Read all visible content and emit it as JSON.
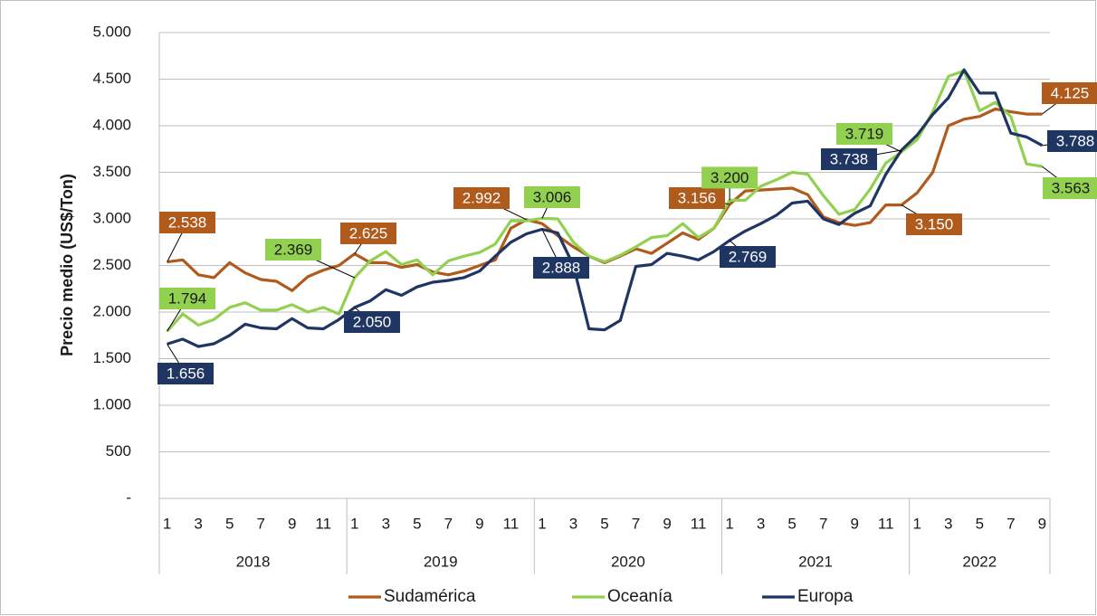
{
  "chart_data": {
    "type": "line",
    "y_label": "Precio medio (US$/Ton)",
    "categories": [
      "1",
      null,
      "3",
      null,
      "5",
      null,
      "7",
      null,
      "9",
      null,
      "11",
      null,
      "1",
      null,
      "3",
      null,
      "5",
      null,
      "7",
      null,
      "9",
      null,
      "11",
      null,
      "1",
      null,
      "3",
      null,
      "5",
      null,
      "7",
      null,
      "9",
      null,
      "11",
      null,
      "1",
      null,
      "3",
      null,
      "5",
      null,
      "7",
      null,
      "9",
      null,
      "11",
      null,
      "1",
      null,
      "3",
      null,
      "5",
      null,
      "7",
      null,
      "9"
    ],
    "groups": [
      "2018",
      "2019",
      "2020",
      "2021",
      "2022"
    ],
    "ylim": [
      0,
      5000
    ],
    "yticks": [
      {
        "value": 0,
        "label": "-"
      },
      500,
      {
        "value": 1000,
        "label": "1.000"
      },
      {
        "value": 1500,
        "label": "1.500"
      },
      {
        "value": 2000,
        "label": "2.000"
      },
      {
        "value": 2500,
        "label": "2.500"
      },
      {
        "value": 3000,
        "label": "3.000"
      },
      {
        "value": 3500,
        "label": "3.500"
      },
      {
        "value": 4000,
        "label": "4.000"
      },
      {
        "value": 4500,
        "label": "4.500"
      },
      {
        "value": 5000,
        "label": "5.000"
      }
    ],
    "grid": true,
    "legend": "bottom",
    "series": [
      {
        "name": "Sudamérica",
        "color": "#b05a1c",
        "label_text": "#ffffff",
        "values": [
          2538,
          2560,
          2400,
          2370,
          2530,
          2420,
          2350,
          2330,
          2230,
          2380,
          2450,
          2500,
          2625,
          2530,
          2530,
          2480,
          2510,
          2430,
          2400,
          2440,
          2500,
          2560,
          2900,
          2992,
          2950,
          2820,
          2700,
          2600,
          2530,
          2600,
          2680,
          2630,
          2740,
          2850,
          2780,
          2900,
          3156,
          3300,
          3310,
          3320,
          3330,
          3260,
          3020,
          2960,
          2930,
          2960,
          3150,
          3150,
          3280,
          3500,
          4000,
          4070,
          4100,
          4180,
          4150,
          4125,
          4125
        ],
        "value_labels": [
          "2.538",
          null,
          null,
          null,
          null,
          null,
          null,
          null,
          null,
          null,
          null,
          null,
          "2.625",
          null,
          null,
          null,
          null,
          null,
          null,
          null,
          null,
          null,
          null,
          "2.992",
          null,
          null,
          null,
          null,
          null,
          null,
          null,
          null,
          null,
          null,
          null,
          null,
          "3.156",
          null,
          null,
          null,
          null,
          null,
          null,
          null,
          null,
          null,
          null,
          "3.150",
          null,
          null,
          null,
          null,
          null,
          null,
          null,
          null,
          "4.125"
        ]
      },
      {
        "name": "Oceanía",
        "color": "#92d050",
        "label_text": "#1a1a1a",
        "values": [
          1794,
          1980,
          1860,
          1920,
          2050,
          2100,
          2020,
          2020,
          2080,
          2000,
          2050,
          1980,
          2369,
          2550,
          2650,
          2510,
          2560,
          2400,
          2550,
          2600,
          2640,
          2730,
          2980,
          2980,
          3006,
          3000,
          2750,
          2600,
          2540,
          2610,
          2700,
          2800,
          2820,
          2950,
          2800,
          2900,
          3200,
          3200,
          3350,
          3420,
          3500,
          3480,
          3250,
          3050,
          3100,
          3320,
          3600,
          3719,
          3850,
          4150,
          4530,
          4590,
          4160,
          4250,
          4100,
          3590,
          3563
        ],
        "value_labels": [
          "1.794",
          null,
          null,
          null,
          null,
          null,
          null,
          null,
          null,
          null,
          null,
          null,
          "2.369",
          null,
          null,
          null,
          null,
          null,
          null,
          null,
          null,
          null,
          null,
          null,
          "3.006",
          null,
          null,
          null,
          null,
          null,
          null,
          null,
          null,
          null,
          null,
          null,
          "3.200",
          null,
          null,
          null,
          null,
          null,
          null,
          null,
          null,
          null,
          null,
          "3.719",
          null,
          null,
          null,
          null,
          null,
          null,
          null,
          null,
          "3.563"
        ]
      },
      {
        "name": "Europa",
        "color": "#1f3562",
        "label_text": "#ffffff",
        "values": [
          1656,
          1710,
          1630,
          1660,
          1750,
          1870,
          1830,
          1820,
          1930,
          1830,
          1820,
          1920,
          2050,
          2120,
          2240,
          2180,
          2270,
          2320,
          2340,
          2370,
          2440,
          2600,
          2750,
          2840,
          2888,
          2850,
          2500,
          1820,
          1810,
          1910,
          2490,
          2510,
          2630,
          2600,
          2560,
          2650,
          2769,
          2870,
          2950,
          3040,
          3170,
          3190,
          3000,
          2940,
          3060,
          3140,
          3480,
          3738,
          3900,
          4120,
          4300,
          4600,
          4350,
          4350,
          3920,
          3880,
          3788
        ],
        "value_labels": [
          "1.656",
          null,
          null,
          null,
          null,
          null,
          null,
          null,
          null,
          null,
          null,
          null,
          "2.050",
          null,
          null,
          null,
          null,
          null,
          null,
          null,
          null,
          null,
          null,
          null,
          "2.888",
          null,
          null,
          null,
          null,
          null,
          null,
          null,
          null,
          null,
          null,
          null,
          "2.769",
          null,
          null,
          null,
          null,
          null,
          null,
          null,
          null,
          null,
          null,
          "3.738",
          null,
          null,
          null,
          null,
          null,
          null,
          null,
          null,
          "3.788"
        ]
      }
    ]
  }
}
